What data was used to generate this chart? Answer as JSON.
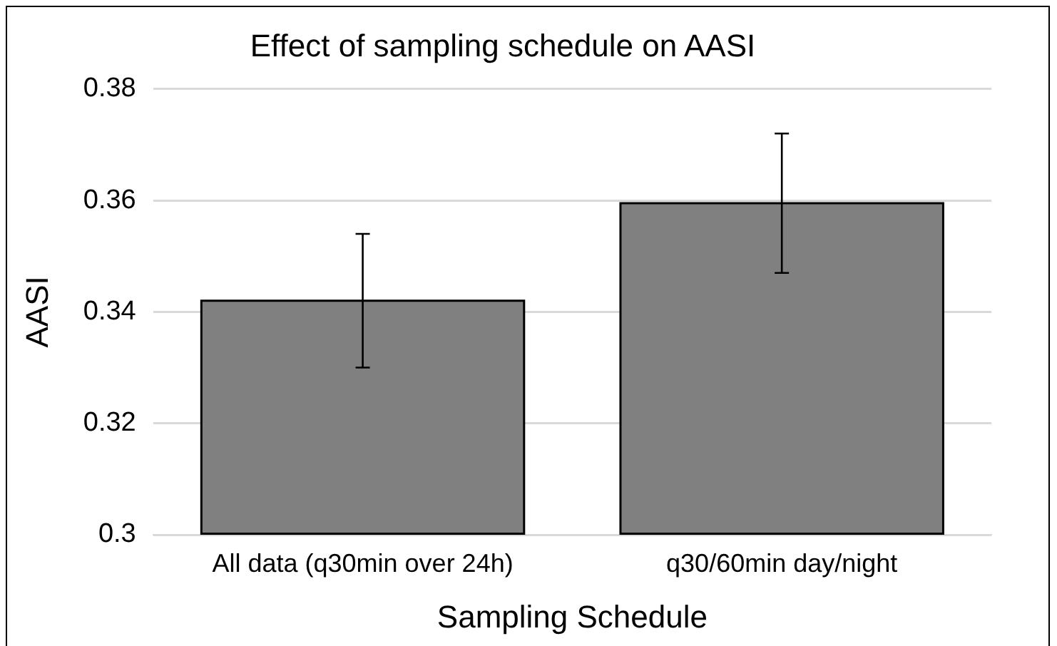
{
  "chart_data": {
    "type": "bar",
    "title": "Effect of sampling schedule on AASI",
    "xlabel": "Sampling Schedule",
    "ylabel": "AASI",
    "categories": [
      "All data (q30min over 24h)",
      "q30/60min day/night"
    ],
    "values": [
      0.342,
      0.3595
    ],
    "errors": [
      0.012,
      0.0125
    ],
    "color": "#808080",
    "ylim": [
      0.3,
      0.38
    ],
    "yticks": [
      0.3,
      0.32,
      0.34,
      0.36,
      0.38
    ],
    "grid": "y",
    "legend": false
  }
}
